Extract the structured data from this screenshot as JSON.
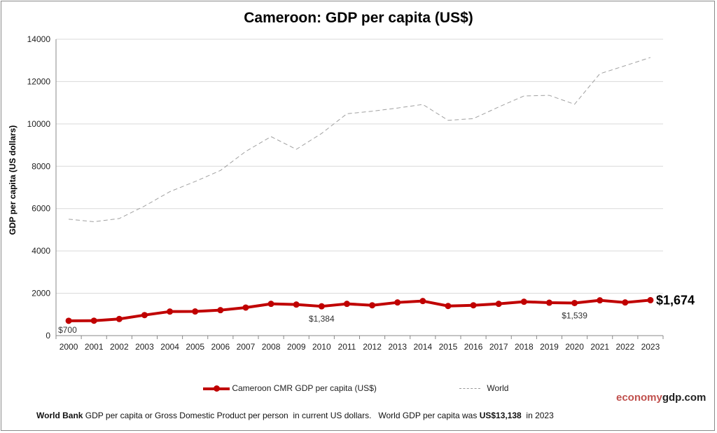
{
  "chart_data": {
    "type": "line",
    "title": "Cameroon: GDP per capita (US$)",
    "ylabel": "GDP per capita (US dollars)",
    "xlabel": "",
    "ylim": [
      0,
      14000
    ],
    "yticks": [
      "0",
      "2000",
      "4000",
      "6000",
      "8000",
      "10000",
      "12000",
      "14000"
    ],
    "grid": true,
    "legend_position": "bottom",
    "x": [
      "2000",
      "2001",
      "2002",
      "2003",
      "2004",
      "2005",
      "2006",
      "2007",
      "2008",
      "2009",
      "2010",
      "2011",
      "2012",
      "2013",
      "2014",
      "2015",
      "2016",
      "2017",
      "2018",
      "2019",
      "2020",
      "2021",
      "2022",
      "2023"
    ],
    "series": [
      {
        "name": "Cameroon CMR GDP per capita (US$)",
        "color": "#c00000",
        "style": "solid-markers",
        "values": [
          700,
          705,
          785,
          970,
          1136,
          1140,
          1202,
          1325,
          1500,
          1467,
          1384,
          1500,
          1433,
          1566,
          1633,
          1400,
          1433,
          1500,
          1600,
          1555,
          1539,
          1666,
          1566,
          1674
        ]
      },
      {
        "name": "World",
        "color": "#a0a0a0",
        "style": "dashed",
        "values": [
          5500,
          5380,
          5530,
          6120,
          6800,
          7280,
          7800,
          8700,
          9400,
          8800,
          9550,
          10480,
          10600,
          10750,
          10920,
          10170,
          10250,
          10800,
          11320,
          11350,
          10930,
          12370,
          12750,
          13138
        ]
      }
    ],
    "annotations": [
      {
        "x": "2000",
        "text": "$700"
      },
      {
        "x": "2010",
        "text": "$1,384"
      },
      {
        "x": "2020",
        "text": "$1,539"
      },
      {
        "x": "2023",
        "text": "$1,674",
        "emphasis": true
      }
    ]
  },
  "footer": {
    "brand_a": "economy",
    "brand_b": "gdp.com",
    "note_bold1": "World Bank",
    "note_text1": " GDP per capita or Gross Domestic Product per person  in current US dollars.   World GDP per capita was ",
    "note_bold2": "US$13,138",
    "note_text2": "  in 2023"
  }
}
